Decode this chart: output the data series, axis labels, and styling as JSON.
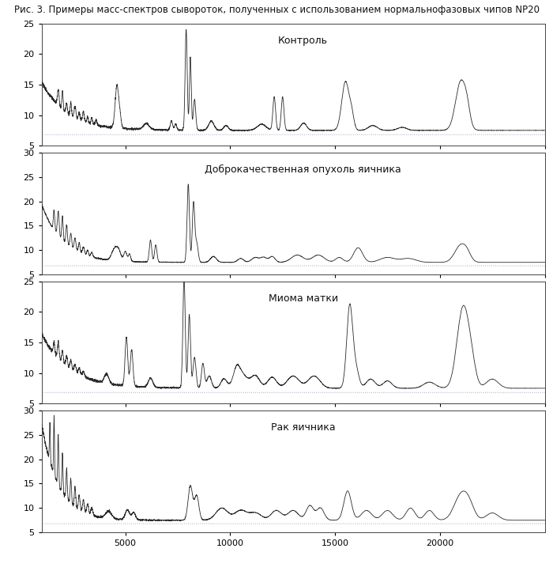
{
  "title": "Рис. 3. Примеры масс-спектров сывороток, полученных с использованием нормальнофазовых чипов NP20",
  "panels": [
    {
      "label": "Контроль",
      "ylim": [
        5,
        25
      ],
      "yticks": [
        5,
        10,
        15,
        20,
        25
      ]
    },
    {
      "label": "Доброкачественная опухоль яичника",
      "ylim": [
        5,
        30
      ],
      "yticks": [
        5,
        10,
        15,
        20,
        25,
        30
      ]
    },
    {
      "label": "Миома матки",
      "ylim": [
        5,
        25
      ],
      "yticks": [
        5,
        10,
        15,
        20,
        25
      ]
    },
    {
      "label": "Рак яичника",
      "ylim": [
        5,
        30
      ],
      "yticks": [
        5,
        10,
        15,
        20,
        25,
        30
      ]
    }
  ],
  "xlim": [
    1000,
    25000
  ],
  "xticks": [
    5000,
    10000,
    15000,
    20000
  ],
  "line_color": "#2a2a2a",
  "dot_color": "#9999bb",
  "bg_color": "#ffffff",
  "title_fontsize": 8.5,
  "label_fontsize": 9,
  "tick_fontsize": 8
}
